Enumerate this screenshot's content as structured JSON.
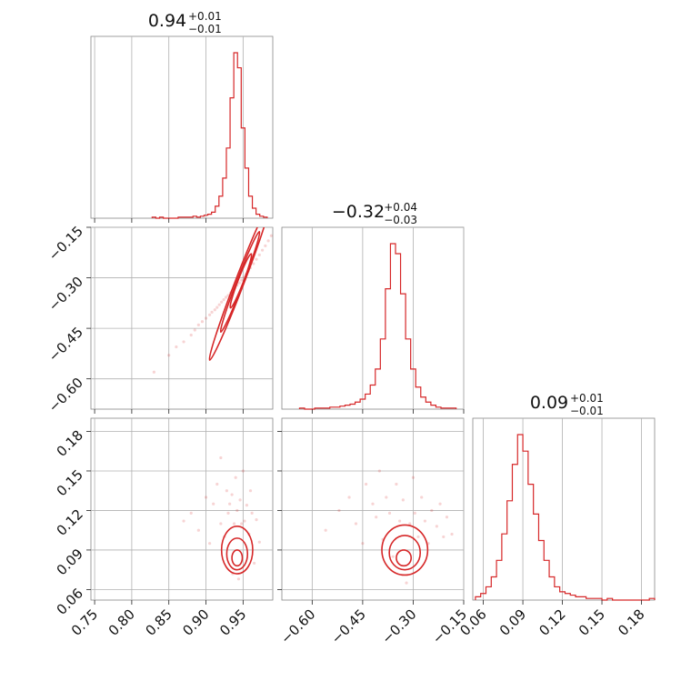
{
  "chart_data": {
    "type": "corner",
    "color": "#d62728",
    "parameters": [
      {
        "title": {
          "median": "0.94",
          "plus": "+0.01",
          "minus": "−0.01"
        },
        "range": [
          0.745,
          0.99
        ],
        "ticks": [
          0.75,
          0.8,
          0.85,
          0.9,
          0.95
        ],
        "tick_labels": [
          "0.75",
          "0.80",
          "0.85",
          "0.90",
          "0.95"
        ],
        "hist": {
          "x": [
            0.83,
            0.835,
            0.84,
            0.845,
            0.85,
            0.855,
            0.86,
            0.865,
            0.87,
            0.875,
            0.88,
            0.885,
            0.89,
            0.895,
            0.9,
            0.905,
            0.91,
            0.915,
            0.92,
            0.925,
            0.93,
            0.935,
            0.94,
            0.945,
            0.95,
            0.955,
            0.96,
            0.965,
            0.97,
            0.975,
            0.98
          ],
          "counts": [
            1,
            0,
            1,
            0,
            0,
            0,
            0,
            1,
            1,
            1,
            1,
            2,
            1,
            2,
            3,
            4,
            6,
            12,
            22,
            40,
            70,
            120,
            165,
            150,
            90,
            50,
            22,
            10,
            4,
            2,
            1
          ]
        }
      },
      {
        "title": {
          "median": "−0.32",
          "plus": "+0.04",
          "minus": "−0.03"
        },
        "range": [
          -0.69,
          -0.15
        ],
        "ticks": [
          -0.6,
          -0.45,
          -0.3,
          -0.15
        ],
        "tick_labels": [
          "−0.60",
          "−0.45",
          "−0.30",
          "−0.15"
        ],
        "hist": {
          "x": [
            -0.63,
            -0.615,
            -0.6,
            -0.585,
            -0.57,
            -0.555,
            -0.54,
            -0.525,
            -0.51,
            -0.495,
            -0.48,
            -0.465,
            -0.45,
            -0.435,
            -0.42,
            -0.405,
            -0.39,
            -0.375,
            -0.36,
            -0.345,
            -0.33,
            -0.315,
            -0.3,
            -0.285,
            -0.27,
            -0.255,
            -0.24,
            -0.225,
            -0.21,
            -0.195,
            -0.18
          ],
          "counts": [
            1,
            0,
            0,
            1,
            1,
            1,
            2,
            2,
            3,
            4,
            5,
            7,
            10,
            15,
            24,
            40,
            70,
            120,
            165,
            155,
            115,
            70,
            40,
            22,
            12,
            7,
            4,
            2,
            1,
            1,
            1
          ]
        }
      },
      {
        "title": {
          "median": "0.09",
          "plus": "+0.01",
          "minus": "−0.01"
        },
        "range": [
          0.052,
          0.19
        ],
        "ticks": [
          0.06,
          0.09,
          0.12,
          0.15,
          0.18
        ],
        "tick_labels": [
          "0.06",
          "0.09",
          "0.12",
          "0.15",
          "0.18"
        ],
        "hist": {
          "x": [
            0.056,
            0.06,
            0.064,
            0.068,
            0.072,
            0.076,
            0.08,
            0.084,
            0.088,
            0.092,
            0.096,
            0.1,
            0.104,
            0.108,
            0.112,
            0.116,
            0.12,
            0.124,
            0.128,
            0.132,
            0.136,
            0.14,
            0.144,
            0.148,
            0.152,
            0.156,
            0.16,
            0.164,
            0.168,
            0.172,
            0.176,
            0.18,
            0.184,
            0.188
          ],
          "counts": [
            2,
            4,
            8,
            14,
            24,
            40,
            60,
            82,
            100,
            90,
            70,
            52,
            36,
            24,
            14,
            8,
            5,
            4,
            3,
            2,
            2,
            1,
            1,
            1,
            0,
            1,
            0,
            0,
            0,
            0,
            0,
            0,
            0,
            1
          ]
        }
      }
    ],
    "pairs": [
      {
        "x_param": 0,
        "y_param": 1,
        "points": [
          [
            0.83,
            -0.58
          ],
          [
            0.85,
            -0.53
          ],
          [
            0.86,
            -0.505
          ],
          [
            0.87,
            -0.49
          ],
          [
            0.88,
            -0.47
          ],
          [
            0.885,
            -0.455
          ],
          [
            0.89,
            -0.44
          ],
          [
            0.895,
            -0.43
          ],
          [
            0.9,
            -0.42
          ],
          [
            0.905,
            -0.41
          ],
          [
            0.908,
            -0.402
          ],
          [
            0.912,
            -0.395
          ],
          [
            0.915,
            -0.388
          ],
          [
            0.918,
            -0.38
          ],
          [
            0.921,
            -0.372
          ],
          [
            0.924,
            -0.365
          ],
          [
            0.927,
            -0.358
          ],
          [
            0.93,
            -0.352
          ],
          [
            0.933,
            -0.345
          ],
          [
            0.936,
            -0.338
          ],
          [
            0.939,
            -0.33
          ],
          [
            0.942,
            -0.322
          ],
          [
            0.945,
            -0.315
          ],
          [
            0.948,
            -0.307
          ],
          [
            0.951,
            -0.298
          ],
          [
            0.954,
            -0.29
          ],
          [
            0.957,
            -0.28
          ],
          [
            0.96,
            -0.27
          ],
          [
            0.964,
            -0.258
          ],
          [
            0.968,
            -0.245
          ],
          [
            0.972,
            -0.232
          ],
          [
            0.976,
            -0.218
          ],
          [
            0.98,
            -0.205
          ],
          [
            0.984,
            -0.19
          ],
          [
            0.988,
            -0.175
          ]
        ],
        "contours": [
          {
            "cx": 0.945,
            "cy": -0.315,
            "a": 0.04,
            "b": 0.006,
            "angle": 0.94,
            "fill_opacity": 0.25
          },
          {
            "cx": 0.946,
            "cy": -0.312,
            "a": 0.026,
            "b": 0.0045,
            "angle": 0.94,
            "fill_opacity": 0.4
          },
          {
            "cx": 0.947,
            "cy": -0.309,
            "a": 0.014,
            "b": 0.003,
            "angle": 0.94,
            "fill_opacity": 0.6
          }
        ]
      },
      {
        "x_param": 0,
        "y_param": 2,
        "points": [
          [
            0.87,
            0.112
          ],
          [
            0.88,
            0.118
          ],
          [
            0.89,
            0.105
          ],
          [
            0.9,
            0.13
          ],
          [
            0.905,
            0.095
          ],
          [
            0.91,
            0.125
          ],
          [
            0.915,
            0.14
          ],
          [
            0.92,
            0.16
          ],
          [
            0.92,
            0.11
          ],
          [
            0.925,
            0.1
          ],
          [
            0.928,
            0.135
          ],
          [
            0.93,
            0.118
          ],
          [
            0.932,
            0.125
          ],
          [
            0.935,
            0.132
          ],
          [
            0.936,
            0.072
          ],
          [
            0.938,
            0.11
          ],
          [
            0.94,
            0.145
          ],
          [
            0.942,
            0.12
          ],
          [
            0.944,
            0.068
          ],
          [
            0.946,
            0.128
          ],
          [
            0.948,
            0.11
          ],
          [
            0.95,
            0.15
          ],
          [
            0.952,
            0.112
          ],
          [
            0.955,
            0.124
          ],
          [
            0.958,
            0.102
          ],
          [
            0.96,
            0.135
          ],
          [
            0.962,
            0.118
          ],
          [
            0.965,
            0.08
          ],
          [
            0.968,
            0.113
          ],
          [
            0.972,
            0.096
          ]
        ],
        "contours": [
          {
            "cx": 0.942,
            "cy": 0.09,
            "a": 0.021,
            "b": 0.018,
            "angle": 0,
            "fill_opacity": 0.25
          },
          {
            "cx": 0.942,
            "cy": 0.087,
            "a": 0.014,
            "b": 0.012,
            "angle": 0,
            "fill_opacity": 0.4
          },
          {
            "cx": 0.942,
            "cy": 0.084,
            "a": 0.007,
            "b": 0.006,
            "angle": 0,
            "fill_opacity": 0.6
          }
        ]
      },
      {
        "x_param": 1,
        "y_param": 2,
        "points": [
          [
            -0.56,
            0.105
          ],
          [
            -0.52,
            0.12
          ],
          [
            -0.49,
            0.13
          ],
          [
            -0.47,
            0.11
          ],
          [
            -0.45,
            0.095
          ],
          [
            -0.44,
            0.14
          ],
          [
            -0.42,
            0.125
          ],
          [
            -0.41,
            0.115
          ],
          [
            -0.4,
            0.15
          ],
          [
            -0.39,
            0.098
          ],
          [
            -0.38,
            0.13
          ],
          [
            -0.37,
            0.118
          ],
          [
            -0.36,
            0.085
          ],
          [
            -0.35,
            0.14
          ],
          [
            -0.34,
            0.112
          ],
          [
            -0.33,
            0.128
          ],
          [
            -0.32,
            0.065
          ],
          [
            -0.31,
            0.11
          ],
          [
            -0.3,
            0.145
          ],
          [
            -0.295,
            0.118
          ],
          [
            -0.285,
            0.1
          ],
          [
            -0.275,
            0.13
          ],
          [
            -0.265,
            0.112
          ],
          [
            -0.255,
            0.095
          ],
          [
            -0.245,
            0.12
          ],
          [
            -0.23,
            0.108
          ],
          [
            -0.22,
            0.125
          ],
          [
            -0.21,
            0.1
          ],
          [
            -0.2,
            0.115
          ],
          [
            -0.185,
            0.102
          ]
        ],
        "contours": [
          {
            "cx": -0.325,
            "cy": 0.09,
            "a": 0.068,
            "b": 0.019,
            "angle": 0,
            "fill_opacity": 0.25
          },
          {
            "cx": -0.325,
            "cy": 0.088,
            "a": 0.046,
            "b": 0.013,
            "angle": 0,
            "fill_opacity": 0.4
          },
          {
            "cx": -0.328,
            "cy": 0.084,
            "a": 0.022,
            "b": 0.006,
            "angle": 0,
            "fill_opacity": 0.6
          }
        ]
      }
    ]
  }
}
